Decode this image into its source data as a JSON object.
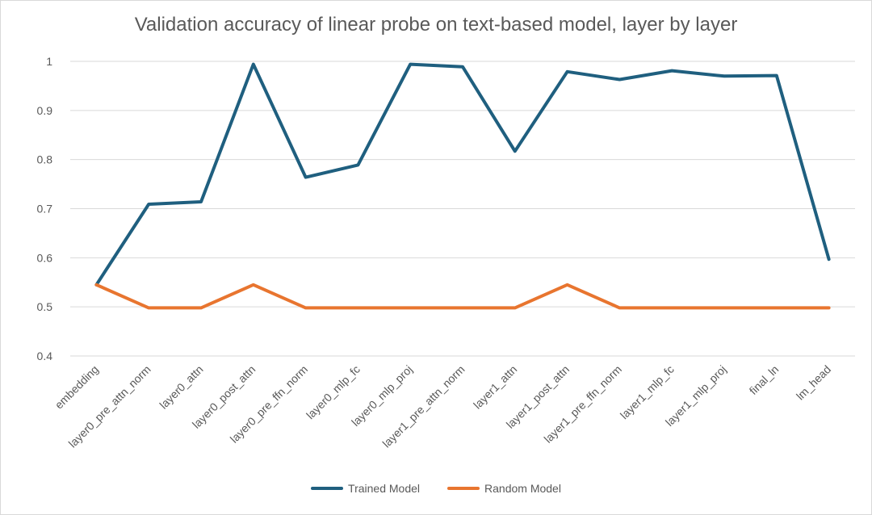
{
  "chart_data": {
    "type": "line",
    "title": "Validation accuracy of linear probe on text-based model, layer by layer",
    "categories": [
      "embedding",
      "layer0_pre_attn_norm",
      "layer0_attn",
      "layer0_post_attn",
      "layer0_pre_ffn_norm",
      "layer0_mlp_fc",
      "layer0_mlp_proj",
      "layer1_pre_attn_norm",
      "layer1_attn",
      "layer1_post_attn",
      "layer1_pre_ffn_norm",
      "layer1_mlp_fc",
      "layer1_mlp_proj",
      "final_ln",
      "lm_head"
    ],
    "series": [
      {
        "name": "Trained Model",
        "color": "#1f5f7f",
        "values": [
          0.545,
          0.709,
          0.714,
          0.994,
          0.764,
          0.789,
          0.994,
          0.989,
          0.817,
          0.979,
          0.963,
          0.981,
          0.97,
          0.971,
          0.597
        ]
      },
      {
        "name": "Random Model",
        "color": "#e8752f",
        "values": [
          0.545,
          0.498,
          0.498,
          0.545,
          0.498,
          0.498,
          0.498,
          0.498,
          0.498,
          0.545,
          0.498,
          0.498,
          0.498,
          0.498,
          0.498
        ]
      }
    ],
    "ylim": [
      0.4,
      1.0
    ],
    "yticks": [
      "0.4",
      "0.5",
      "0.6",
      "0.7",
      "0.8",
      "0.9",
      "1"
    ],
    "xlabel": "",
    "ylabel": "",
    "grid": true,
    "legend_position": "bottom"
  }
}
